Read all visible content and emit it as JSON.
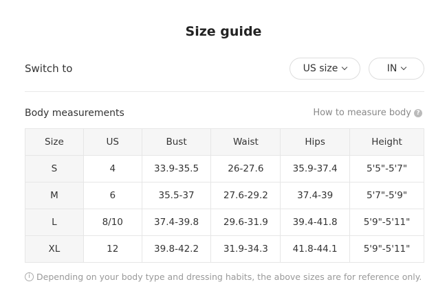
{
  "title": "Size guide",
  "switch": {
    "label": "Switch to",
    "size_system": "US size",
    "unit": "IN"
  },
  "section": {
    "title": "Body measurements",
    "help_link": "How to measure body"
  },
  "table": {
    "headers": [
      "Size",
      "US",
      "Bust",
      "Waist",
      "Hips",
      "Height"
    ],
    "rows": [
      [
        "S",
        "4",
        "33.9-35.5",
        "26-27.6",
        "35.9-37.4",
        "5'5\"-5'7\""
      ],
      [
        "M",
        "6",
        "35.5-37",
        "27.6-29.2",
        "37.4-39",
        "5'7\"-5'9\""
      ],
      [
        "L",
        "8/10",
        "37.4-39.8",
        "29.6-31.9",
        "39.4-41.8",
        "5'9\"-5'11\""
      ],
      [
        "XL",
        "12",
        "39.8-42.2",
        "31.9-34.3",
        "41.8-44.1",
        "5'9\"-5'11\""
      ]
    ]
  },
  "note": "Depending on your body type and dressing habits, the above sizes are for reference only."
}
